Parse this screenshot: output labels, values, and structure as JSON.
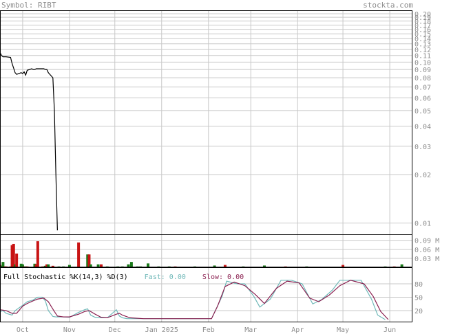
{
  "header": {
    "symbol_label": "Symbol: RIBT",
    "brand": "stockta.com"
  },
  "colors": {
    "price_line": "#000000",
    "grid": "#c8c8c8",
    "frame": "#000000",
    "vol_up": "#1a7a1a",
    "vol_down": "#c81414",
    "fast": "#6fb8b8",
    "slow": "#8a2050",
    "label": "#8c8c8c"
  },
  "chart_data": [
    {
      "type": "line",
      "panel": "price",
      "y_scale": "log",
      "ylim": [
        0.0085,
        0.21
      ],
      "y_ticks": [
        0.2,
        0.19,
        0.18,
        0.17,
        0.16,
        0.15,
        0.14,
        0.13,
        0.12,
        0.11,
        0.1,
        0.09,
        0.08,
        0.07,
        0.06,
        0.05,
        0.04,
        0.03,
        0.02,
        0.01
      ],
      "y_tick_labels": [
        "0.20",
        "0.19",
        "0.18",
        "0.17",
        "0.16",
        "0.15",
        "0.14",
        "0.13",
        "0.12",
        "0.11",
        "0.10",
        "0.09",
        "0.08",
        "0.07",
        "0.06",
        "0.05",
        "0.04",
        "0.03",
        "0.02",
        "0.01"
      ],
      "x_ticks": [
        "Oct",
        "Nov",
        "Dec",
        "Jan 2025",
        "Feb",
        "Mar",
        "Apr",
        "May",
        "Jun"
      ],
      "x_tick_dates": [
        "2024-10-01",
        "2024-11-01",
        "2024-12-01",
        "2025-01-01",
        "2025-02-01",
        "2025-03-01",
        "2025-04-01",
        "2025-05-01",
        "2025-06-01"
      ],
      "series": [
        {
          "points": [
            [
              "2024-09-16",
              0.115
            ],
            [
              "2024-09-17",
              0.11
            ],
            [
              "2024-09-18",
              0.108
            ],
            [
              "2024-09-19",
              0.108
            ],
            [
              "2024-09-20",
              0.108
            ],
            [
              "2024-09-23",
              0.107
            ],
            [
              "2024-09-24",
              0.098
            ],
            [
              "2024-09-25",
              0.092
            ],
            [
              "2024-09-26",
              0.086
            ],
            [
              "2024-09-27",
              0.084
            ],
            [
              "2024-09-30",
              0.086
            ],
            [
              "2024-10-01",
              0.085
            ],
            [
              "2024-10-02",
              0.087
            ],
            [
              "2024-10-03",
              0.083
            ],
            [
              "2024-10-04",
              0.089
            ],
            [
              "2024-10-07",
              0.091
            ],
            [
              "2024-10-08",
              0.09
            ],
            [
              "2024-10-09",
              0.09
            ],
            [
              "2024-10-10",
              0.091
            ],
            [
              "2024-10-11",
              0.091
            ],
            [
              "2024-10-14",
              0.091
            ],
            [
              "2024-10-15",
              0.091
            ],
            [
              "2024-10-16",
              0.09
            ],
            [
              "2024-10-17",
              0.09
            ],
            [
              "2024-10-18",
              0.086
            ],
            [
              "2024-10-21",
              0.08
            ],
            [
              "2024-10-22",
              0.05
            ],
            [
              "2024-10-23",
              0.02
            ],
            [
              "2024-10-24",
              0.009
            ]
          ]
        }
      ]
    },
    {
      "type": "bar",
      "panel": "volume",
      "ylim": [
        0,
        0.11
      ],
      "y_ticks": [
        0.09,
        0.06,
        0.03
      ],
      "y_tick_labels": [
        "0.09 M",
        "0.06 M",
        "0.03 M"
      ],
      "series": [
        {
          "points": [
            [
              "2024-09-16",
              0.008,
              "down"
            ],
            [
              "2024-09-17",
              0.005,
              "up"
            ],
            [
              "2024-09-18",
              0.018,
              "up"
            ],
            [
              "2024-09-19",
              0.003,
              "down"
            ],
            [
              "2024-09-20",
              0.003,
              "down"
            ],
            [
              "2024-09-23",
              0.003,
              "down"
            ],
            [
              "2024-09-24",
              0.074,
              "down"
            ],
            [
              "2024-09-25",
              0.078,
              "down"
            ],
            [
              "2024-09-26",
              0.01,
              "up"
            ],
            [
              "2024-09-27",
              0.046,
              "down"
            ],
            [
              "2024-09-30",
              0.012,
              "up"
            ],
            [
              "2024-10-01",
              0.01,
              "up"
            ],
            [
              "2024-10-02",
              0.003,
              "down"
            ],
            [
              "2024-10-03",
              0.003,
              "up"
            ],
            [
              "2024-10-04",
              0.003,
              "down"
            ],
            [
              "2024-10-09",
              0.012,
              "up"
            ],
            [
              "2024-10-10",
              0.01,
              "down"
            ],
            [
              "2024-10-11",
              0.087,
              "down"
            ],
            [
              "2024-10-14",
              0.003,
              "down"
            ],
            [
              "2024-10-15",
              0.003,
              "down"
            ],
            [
              "2024-10-16",
              0.005,
              "up"
            ],
            [
              "2024-10-17",
              0.01,
              "down"
            ],
            [
              "2024-10-18",
              0.01,
              "up"
            ],
            [
              "2024-10-21",
              0.005,
              "down"
            ],
            [
              "2024-10-25",
              0.003,
              "up"
            ],
            [
              "2024-10-28",
              0.003,
              "up"
            ],
            [
              "2024-11-01",
              0.008,
              "up"
            ],
            [
              "2024-11-07",
              0.083,
              "down"
            ],
            [
              "2024-11-13",
              0.043,
              "up"
            ],
            [
              "2024-11-14",
              0.043,
              "down"
            ],
            [
              "2024-11-15",
              0.01,
              "up"
            ],
            [
              "2024-11-20",
              0.01,
              "up"
            ],
            [
              "2024-11-22",
              0.01,
              "down"
            ],
            [
              "2024-11-26",
              0.003,
              "up"
            ],
            [
              "2024-12-03",
              0.003,
              "up"
            ],
            [
              "2024-12-06",
              0.003,
              "up"
            ],
            [
              "2024-12-10",
              0.01,
              "up"
            ],
            [
              "2024-12-12",
              0.018,
              "up"
            ],
            [
              "2024-12-16",
              0.003,
              "up"
            ],
            [
              "2024-12-18",
              0.003,
              "up"
            ],
            [
              "2024-12-23",
              0.013,
              "up"
            ],
            [
              "2024-12-30",
              0.003,
              "up"
            ],
            [
              "2025-01-06",
              0.003,
              "up"
            ],
            [
              "2025-01-10",
              0.003,
              "down"
            ],
            [
              "2025-01-23",
              0.003,
              "up"
            ],
            [
              "2025-02-05",
              0.006,
              "up"
            ],
            [
              "2025-02-12",
              0.008,
              "down"
            ],
            [
              "2025-02-24",
              0.003,
              "up"
            ],
            [
              "2025-03-10",
              0.006,
              "up"
            ],
            [
              "2025-03-24",
              0.003,
              "down"
            ],
            [
              "2025-04-07",
              0.003,
              "up"
            ],
            [
              "2025-05-01",
              0.008,
              "down"
            ],
            [
              "2025-05-29",
              0.003,
              "up"
            ],
            [
              "2025-06-04",
              0.003,
              "down"
            ],
            [
              "2025-06-09",
              0.01,
              "up"
            ]
          ]
        }
      ]
    },
    {
      "type": "line",
      "panel": "stochastic",
      "title": "Full Stochastic %K(14,3) %D(3)",
      "fast_label": "Fast: ",
      "fast_value": "0.00",
      "slow_label": "Slow: ",
      "slow_value": "0.00",
      "ylim": [
        0,
        100
      ],
      "y_ticks": [
        80,
        50,
        20
      ],
      "y_tick_labels": [
        "80",
        "50",
        "20"
      ],
      "series": [
        {
          "id": "fast",
          "points": [
            [
              "2024-09-16",
              18
            ],
            [
              "2024-09-18",
              20
            ],
            [
              "2024-09-20",
              14
            ],
            [
              "2024-09-24",
              10
            ],
            [
              "2024-09-26",
              20
            ],
            [
              "2024-10-01",
              32
            ],
            [
              "2024-10-04",
              40
            ],
            [
              "2024-10-08",
              44
            ],
            [
              "2024-10-11",
              50
            ],
            [
              "2024-10-14",
              50
            ],
            [
              "2024-10-16",
              42
            ],
            [
              "2024-10-18",
              20
            ],
            [
              "2024-10-21",
              7
            ],
            [
              "2024-10-23",
              6
            ],
            [
              "2024-10-28",
              6
            ],
            [
              "2024-11-01",
              5
            ],
            [
              "2024-11-07",
              16
            ],
            [
              "2024-11-11",
              22
            ],
            [
              "2024-11-13",
              24
            ],
            [
              "2024-11-15",
              10
            ],
            [
              "2024-11-18",
              5
            ],
            [
              "2024-11-22",
              4
            ],
            [
              "2024-11-26",
              4
            ],
            [
              "2024-12-02",
              22
            ],
            [
              "2024-12-04",
              8
            ],
            [
              "2024-12-06",
              4
            ],
            [
              "2024-12-09",
              2
            ],
            [
              "2024-12-13",
              2
            ],
            [
              "2024-12-20",
              2
            ],
            [
              "2024-12-27",
              2
            ],
            [
              "2025-01-17",
              2
            ],
            [
              "2025-02-03",
              2
            ],
            [
              "2025-02-10",
              52
            ],
            [
              "2025-02-13",
              86
            ],
            [
              "2025-02-20",
              80
            ],
            [
              "2025-02-25",
              80
            ],
            [
              "2025-03-03",
              52
            ],
            [
              "2025-03-07",
              28
            ],
            [
              "2025-03-14",
              46
            ],
            [
              "2025-03-21",
              88
            ],
            [
              "2025-03-28",
              88
            ],
            [
              "2025-04-04",
              80
            ],
            [
              "2025-04-11",
              35
            ],
            [
              "2025-04-17",
              45
            ],
            [
              "2025-04-24",
              66
            ],
            [
              "2025-04-29",
              88
            ],
            [
              "2025-05-06",
              88
            ],
            [
              "2025-05-13",
              88
            ],
            [
              "2025-05-20",
              45
            ],
            [
              "2025-05-24",
              10
            ],
            [
              "2025-05-29",
              0
            ]
          ]
        },
        {
          "id": "slow",
          "points": [
            [
              "2024-09-16",
              22
            ],
            [
              "2024-09-20",
              20
            ],
            [
              "2024-09-24",
              14
            ],
            [
              "2024-09-27",
              14
            ],
            [
              "2024-10-01",
              30
            ],
            [
              "2024-10-04",
              36
            ],
            [
              "2024-10-08",
              42
            ],
            [
              "2024-10-11",
              46
            ],
            [
              "2024-10-15",
              48
            ],
            [
              "2024-10-18",
              40
            ],
            [
              "2024-10-22",
              18
            ],
            [
              "2024-10-24",
              8
            ],
            [
              "2024-10-28",
              6
            ],
            [
              "2024-11-01",
              6
            ],
            [
              "2024-11-07",
              12
            ],
            [
              "2024-11-11",
              18
            ],
            [
              "2024-11-14",
              20
            ],
            [
              "2024-11-18",
              12
            ],
            [
              "2024-11-22",
              5
            ],
            [
              "2024-11-26",
              4
            ],
            [
              "2024-12-02",
              12
            ],
            [
              "2024-12-04",
              14
            ],
            [
              "2024-12-06",
              10
            ],
            [
              "2024-12-11",
              4
            ],
            [
              "2024-12-20",
              2
            ],
            [
              "2025-01-17",
              2
            ],
            [
              "2025-02-03",
              2
            ],
            [
              "2025-02-07",
              30
            ],
            [
              "2025-02-12",
              74
            ],
            [
              "2025-02-18",
              84
            ],
            [
              "2025-02-25",
              76
            ],
            [
              "2025-03-04",
              56
            ],
            [
              "2025-03-10",
              36
            ],
            [
              "2025-03-18",
              70
            ],
            [
              "2025-03-25",
              86
            ],
            [
              "2025-04-02",
              82
            ],
            [
              "2025-04-09",
              48
            ],
            [
              "2025-04-15",
              40
            ],
            [
              "2025-04-22",
              55
            ],
            [
              "2025-04-29",
              76
            ],
            [
              "2025-05-06",
              88
            ],
            [
              "2025-05-15",
              80
            ],
            [
              "2025-05-21",
              52
            ],
            [
              "2025-05-26",
              18
            ],
            [
              "2025-05-31",
              0
            ]
          ]
        }
      ]
    }
  ]
}
